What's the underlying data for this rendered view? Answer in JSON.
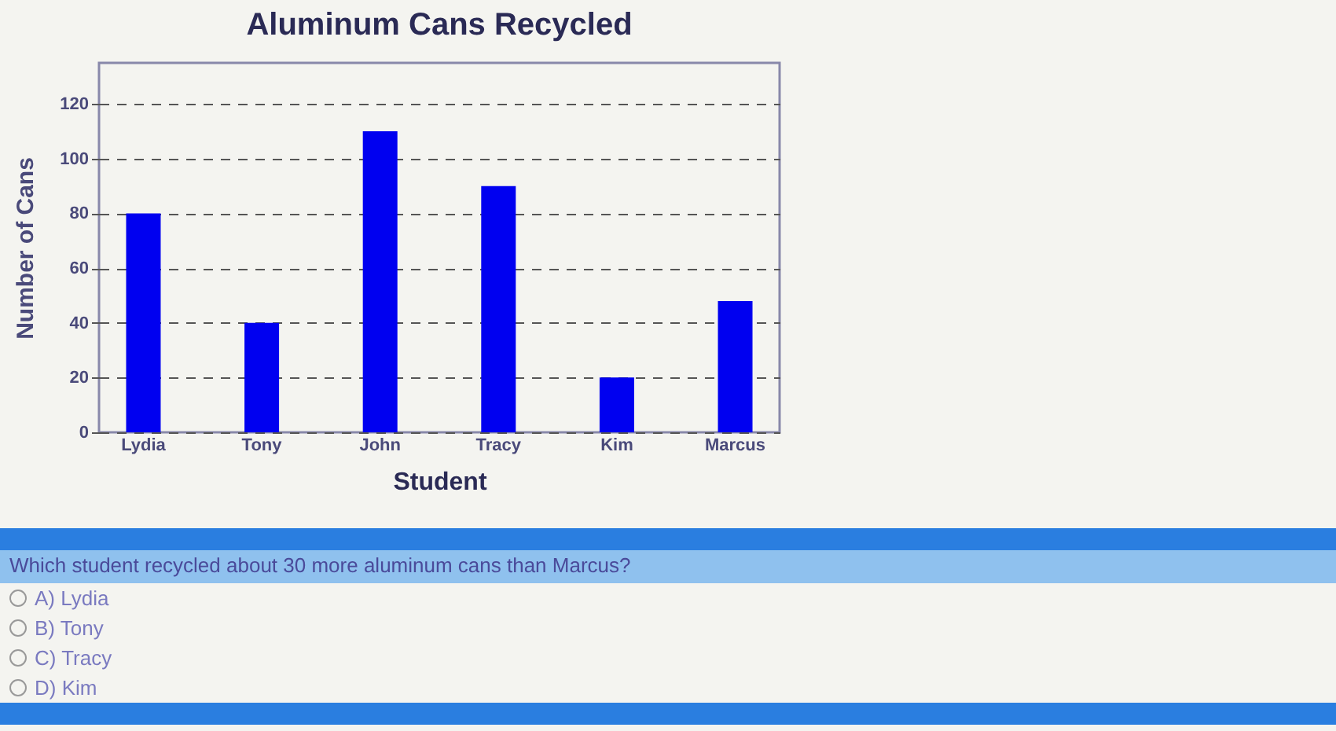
{
  "chart_data": {
    "type": "bar",
    "title": "Aluminum Cans Recycled",
    "xlabel": "Student",
    "ylabel": "Number of Cans",
    "categories": [
      "Lydia",
      "Tony",
      "John",
      "Tracy",
      "Kim",
      "Marcus"
    ],
    "values": [
      80,
      40,
      110,
      90,
      20,
      48
    ],
    "color": "#0000f0",
    "ylim": [
      0,
      135
    ],
    "yticks": [
      0,
      20,
      40,
      60,
      80,
      100,
      120
    ],
    "grid": "y",
    "annotations": [
      "Which student recycled about 30 more aluminum cans than Marcus?",
      "A)  Lydia",
      "B)  Tony",
      "C)  Tracy",
      "D)  Kim"
    ]
  }
}
